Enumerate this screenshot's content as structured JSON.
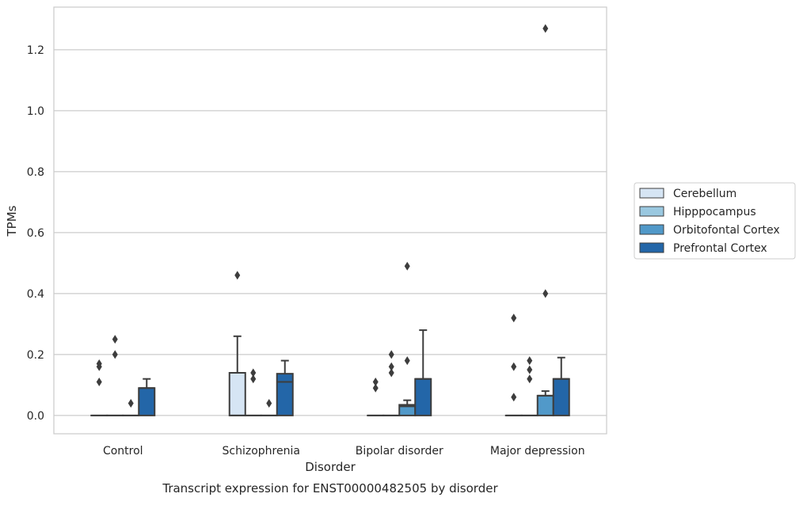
{
  "chart_data": {
    "type": "box",
    "caption": "Transcript expression for ENST00000482505 by disorder",
    "xlabel": "Disorder",
    "ylabel": "TPMs",
    "ylim": [
      -0.06,
      1.34
    ],
    "yticks": [
      0.0,
      0.2,
      0.4,
      0.6,
      0.8,
      1.0,
      1.2
    ],
    "ytick_labels": [
      "0.0",
      "0.2",
      "0.4",
      "0.6",
      "0.8",
      "1.0",
      "1.2"
    ],
    "categories": [
      "Control",
      "Schizophrenia",
      "Bipolar disorder",
      "Major depression"
    ],
    "grid": "horizontal",
    "legend_position": "right, outside plot",
    "series": [
      {
        "name": "Cerebellum",
        "color": "#d6e5f4",
        "boxes": [
          {
            "q1": 0,
            "median": 0,
            "q3": 0,
            "whisker_low": 0,
            "whisker_high": 0,
            "outliers": [
              0.11,
              0.16,
              0.17
            ]
          },
          {
            "q1": 0,
            "median": 0,
            "q3": 0.14,
            "whisker_low": 0,
            "whisker_high": 0.26,
            "outliers": [
              0.46
            ]
          },
          {
            "q1": 0,
            "median": 0,
            "q3": 0,
            "whisker_low": 0,
            "whisker_high": 0,
            "outliers": [
              0.09,
              0.11
            ]
          },
          {
            "q1": 0,
            "median": 0,
            "q3": 0,
            "whisker_low": 0,
            "whisker_high": 0,
            "outliers": [
              0.06,
              0.16,
              0.32
            ]
          }
        ]
      },
      {
        "name": "Hipppocampus",
        "color": "#9ac8e0",
        "boxes": [
          {
            "q1": 0,
            "median": 0,
            "q3": 0,
            "whisker_low": 0,
            "whisker_high": 0,
            "outliers": [
              0.2,
              0.25
            ]
          },
          {
            "q1": 0,
            "median": 0,
            "q3": 0,
            "whisker_low": 0,
            "whisker_high": 0,
            "outliers": [
              0.12,
              0.14
            ]
          },
          {
            "q1": 0,
            "median": 0,
            "q3": 0,
            "whisker_low": 0,
            "whisker_high": 0,
            "outliers": [
              0.14,
              0.16,
              0.2
            ]
          },
          {
            "q1": 0,
            "median": 0,
            "q3": 0,
            "whisker_low": 0,
            "whisker_high": 0,
            "outliers": [
              0.12,
              0.15,
              0.18
            ]
          }
        ]
      },
      {
        "name": "Orbitofontal Cortex",
        "color": "#5199c9",
        "boxes": [
          {
            "q1": 0,
            "median": 0,
            "q3": 0,
            "whisker_low": 0,
            "whisker_high": 0,
            "outliers": [
              0.04
            ]
          },
          {
            "q1": 0,
            "median": 0,
            "q3": 0,
            "whisker_low": 0,
            "whisker_high": 0,
            "outliers": [
              0.04
            ]
          },
          {
            "q1": 0,
            "median": 0.03,
            "q3": 0.035,
            "whisker_low": 0,
            "whisker_high": 0.05,
            "outliers": [
              0.18,
              0.49
            ]
          },
          {
            "q1": 0,
            "median": 0.065,
            "q3": 0.065,
            "whisker_low": 0,
            "whisker_high": 0.08,
            "outliers": [
              0.4,
              1.27
            ]
          }
        ]
      },
      {
        "name": "Prefrontal Cortex",
        "color": "#2366a8",
        "boxes": [
          {
            "q1": 0,
            "median": 0.09,
            "q3": 0.09,
            "whisker_low": 0,
            "whisker_high": 0.12,
            "outliers": []
          },
          {
            "q1": 0,
            "median": 0.11,
            "q3": 0.137,
            "whisker_low": 0,
            "whisker_high": 0.18,
            "outliers": []
          },
          {
            "q1": 0,
            "median": 0.12,
            "q3": 0.12,
            "whisker_low": 0,
            "whisker_high": 0.28,
            "outliers": []
          },
          {
            "q1": 0,
            "median": 0.12,
            "q3": 0.12,
            "whisker_low": 0,
            "whisker_high": 0.19,
            "outliers": []
          }
        ]
      }
    ]
  }
}
